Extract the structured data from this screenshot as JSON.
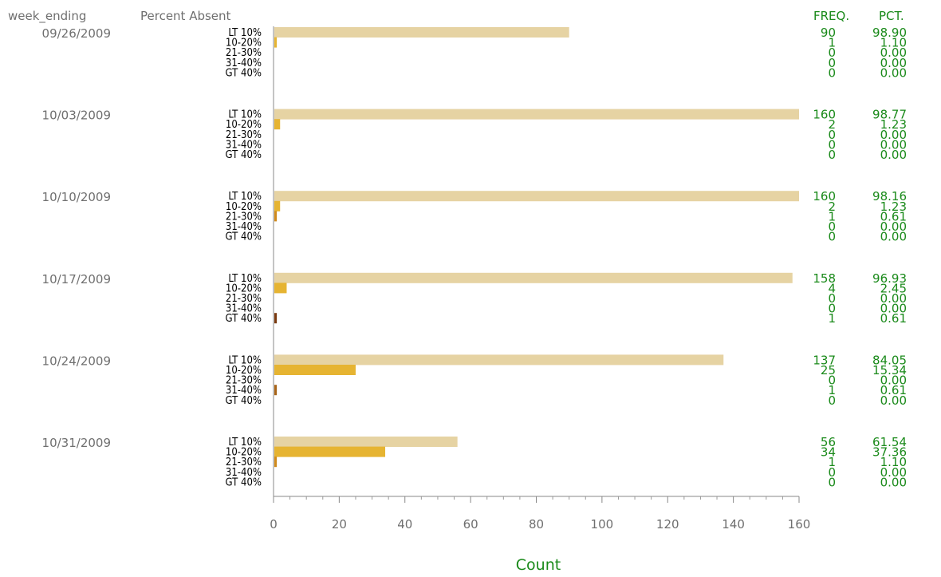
{
  "chart_data": {
    "type": "bar",
    "orientation": "horizontal",
    "headers": {
      "group": "week_ending",
      "category": "Percent Absent",
      "freq": "FREQ.",
      "pct": "PCT."
    },
    "xlabel": "Count",
    "xlim": [
      0,
      160
    ],
    "xticks": [
      "0",
      "20",
      "40",
      "60",
      "80",
      "100",
      "120",
      "140",
      "160"
    ],
    "categories": [
      "LT 10%",
      "10-20%",
      "21-30%",
      "31-40%",
      "GT 40%"
    ],
    "category_colors": [
      "#e6d3a3",
      "#e6b432",
      "#d08a1c",
      "#a86418",
      "#7a3a10"
    ],
    "groups": [
      {
        "week": "09/26/2009",
        "values": [
          90,
          1,
          0,
          0,
          0
        ],
        "freq": [
          "90",
          "1",
          "0",
          "0",
          "0"
        ],
        "pct": [
          "98.90",
          "1.10",
          "0.00",
          "0.00",
          "0.00"
        ]
      },
      {
        "week": "10/03/2009",
        "values": [
          160,
          2,
          0,
          0,
          0
        ],
        "freq": [
          "160",
          "2",
          "0",
          "0",
          "0"
        ],
        "pct": [
          "98.77",
          "1.23",
          "0.00",
          "0.00",
          "0.00"
        ]
      },
      {
        "week": "10/10/2009",
        "values": [
          160,
          2,
          1,
          0,
          0
        ],
        "freq": [
          "160",
          "2",
          "1",
          "0",
          "0"
        ],
        "pct": [
          "98.16",
          "1.23",
          "0.61",
          "0.00",
          "0.00"
        ]
      },
      {
        "week": "10/17/2009",
        "values": [
          158,
          4,
          0,
          0,
          1
        ],
        "freq": [
          "158",
          "4",
          "0",
          "0",
          "1"
        ],
        "pct": [
          "96.93",
          "2.45",
          "0.00",
          "0.00",
          "0.61"
        ]
      },
      {
        "week": "10/24/2009",
        "values": [
          137,
          25,
          0,
          1,
          0
        ],
        "freq": [
          "137",
          "25",
          "0",
          "1",
          "0"
        ],
        "pct": [
          "84.05",
          "15.34",
          "0.00",
          "0.61",
          "0.00"
        ]
      },
      {
        "week": "10/31/2009",
        "values": [
          56,
          34,
          1,
          0,
          0
        ],
        "freq": [
          "56",
          "34",
          "1",
          "0",
          "0"
        ],
        "pct": [
          "61.54",
          "37.36",
          "1.10",
          "0.00",
          "0.00"
        ]
      }
    ]
  }
}
